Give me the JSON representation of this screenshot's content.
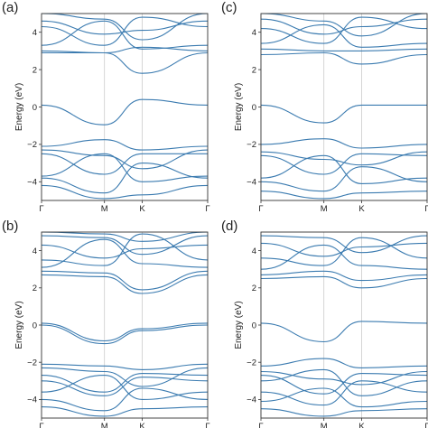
{
  "figure": {
    "line_color": "#3b7bb0",
    "frame_color": "#333333",
    "guide_color": "#cccccc"
  },
  "chart_data": [
    {
      "type": "line",
      "panel": "(a)",
      "ylabel": "Energy (eV)",
      "ylim": [
        -5,
        5
      ],
      "yticks": [
        "4",
        "2",
        "0",
        "−2",
        "−4"
      ],
      "xticks": [
        "Γ",
        "M",
        "K",
        "Γ"
      ],
      "series": [
        {
          "x": [
            0,
            0.5,
            0.8,
            1.32
          ],
          "y": [
            0.1,
            -0.95,
            0.4,
            0.1
          ]
        },
        {
          "x": [
            0,
            0.5,
            0.8,
            1.32
          ],
          "y": [
            -2.1,
            -1.75,
            -2.3,
            -2.1
          ]
        },
        {
          "x": [
            0,
            0.5,
            0.8,
            1.32
          ],
          "y": [
            -2.3,
            -2.6,
            -3.3,
            -2.3
          ]
        },
        {
          "x": [
            0,
            0.5,
            0.8,
            1.32
          ],
          "y": [
            -2.5,
            -3.6,
            -2.5,
            -2.5
          ]
        },
        {
          "x": [
            0,
            0.5,
            0.8,
            1.32
          ],
          "y": [
            -3.7,
            -2.5,
            -4.0,
            -3.7
          ]
        },
        {
          "x": [
            0,
            0.5,
            0.8,
            1.32
          ],
          "y": [
            -3.8,
            -4.6,
            -3.0,
            -3.8
          ]
        },
        {
          "x": [
            0,
            0.5,
            0.8,
            1.32
          ],
          "y": [
            -4.2,
            -4.9,
            -4.7,
            -4.2
          ]
        },
        {
          "x": [
            0,
            0.5,
            0.8,
            1.32
          ],
          "y": [
            2.9,
            2.9,
            1.8,
            2.9
          ]
        },
        {
          "x": [
            0,
            0.5,
            0.8,
            1.32
          ],
          "y": [
            3.0,
            2.9,
            3.2,
            3.0
          ]
        },
        {
          "x": [
            0,
            0.5,
            0.8,
            1.32
          ],
          "y": [
            3.3,
            4.6,
            3.1,
            3.3
          ]
        },
        {
          "x": [
            0,
            0.5,
            0.8,
            1.32
          ],
          "y": [
            4.3,
            3.3,
            4.8,
            4.3
          ]
        },
        {
          "x": [
            0,
            0.5,
            0.8,
            1.32
          ],
          "y": [
            4.6,
            3.9,
            4.1,
            4.6
          ]
        },
        {
          "x": [
            0,
            0.5,
            0.8,
            1.32
          ],
          "y": [
            5.0,
            4.7,
            3.6,
            5.0
          ]
        }
      ]
    },
    {
      "type": "line",
      "panel": "(c)",
      "ylabel": "Energy (eV)",
      "ylim": [
        -5,
        5
      ],
      "yticks": [
        "4",
        "2",
        "0",
        "−2",
        "−4"
      ],
      "xticks": [
        "Γ",
        "M",
        "K",
        "Γ"
      ],
      "series": [
        {
          "x": [
            0,
            0.5,
            0.8,
            1.32
          ],
          "y": [
            0.1,
            -0.85,
            0.1,
            0.1
          ]
        },
        {
          "x": [
            0,
            0.5,
            0.8,
            1.32
          ],
          "y": [
            -2.0,
            -1.7,
            -2.2,
            -2.0
          ]
        },
        {
          "x": [
            0,
            0.5,
            0.8,
            1.32
          ],
          "y": [
            -2.4,
            -2.8,
            -3.1,
            -2.4
          ]
        },
        {
          "x": [
            0,
            0.5,
            0.8,
            1.32
          ],
          "y": [
            -2.6,
            -3.6,
            -2.5,
            -2.6
          ]
        },
        {
          "x": [
            0,
            0.5,
            0.8,
            1.32
          ],
          "y": [
            -3.8,
            -2.6,
            -4.1,
            -3.8
          ]
        },
        {
          "x": [
            0,
            0.5,
            0.8,
            1.32
          ],
          "y": [
            -4.0,
            -4.5,
            -3.2,
            -4.0
          ]
        },
        {
          "x": [
            0,
            0.5,
            0.8,
            1.32
          ],
          "y": [
            -4.5,
            -4.9,
            -4.6,
            -4.5
          ]
        },
        {
          "x": [
            0,
            0.5,
            0.8,
            1.32
          ],
          "y": [
            2.8,
            2.9,
            2.3,
            2.8
          ]
        },
        {
          "x": [
            0,
            0.5,
            0.8,
            1.32
          ],
          "y": [
            3.1,
            3.0,
            3.0,
            3.1
          ]
        },
        {
          "x": [
            0,
            0.5,
            0.8,
            1.32
          ],
          "y": [
            3.4,
            4.4,
            3.2,
            3.4
          ]
        },
        {
          "x": [
            0,
            0.5,
            0.8,
            1.32
          ],
          "y": [
            4.2,
            3.4,
            4.8,
            4.2
          ]
        },
        {
          "x": [
            0,
            0.5,
            0.8,
            1.32
          ],
          "y": [
            4.7,
            3.9,
            4.3,
            4.7
          ]
        },
        {
          "x": [
            0,
            0.5,
            0.8,
            1.32
          ],
          "y": [
            5.0,
            4.6,
            3.8,
            5.0
          ]
        }
      ]
    },
    {
      "type": "line",
      "panel": "(b)",
      "ylabel": "Energy (eV)",
      "ylim": [
        -5,
        5
      ],
      "yticks": [
        "4",
        "2",
        "0",
        "−2",
        "−4"
      ],
      "xticks": [
        "Γ",
        "M",
        "K",
        "Γ"
      ],
      "series": [
        {
          "x": [
            0,
            0.5,
            0.8,
            1.32
          ],
          "y": [
            0.1,
            -0.85,
            -0.2,
            0.1
          ]
        },
        {
          "x": [
            0,
            0.5,
            0.8,
            1.32
          ],
          "y": [
            0.0,
            -1.0,
            -0.3,
            0.0
          ]
        },
        {
          "x": [
            0,
            0.5,
            0.8,
            1.32
          ],
          "y": [
            -2.1,
            -2.2,
            -2.4,
            -2.1
          ]
        },
        {
          "x": [
            0,
            0.5,
            0.8,
            1.32
          ],
          "y": [
            -2.3,
            -2.5,
            -3.3,
            -2.3
          ]
        },
        {
          "x": [
            0,
            0.5,
            0.8,
            1.32
          ],
          "y": [
            -2.7,
            -3.6,
            -2.6,
            -2.7
          ]
        },
        {
          "x": [
            0,
            0.5,
            0.8,
            1.32
          ],
          "y": [
            -3.0,
            -3.8,
            -2.8,
            -3.0
          ]
        },
        {
          "x": [
            0,
            0.5,
            0.8,
            1.32
          ],
          "y": [
            -3.6,
            -2.7,
            -4.0,
            -3.6
          ]
        },
        {
          "x": [
            0,
            0.5,
            0.8,
            1.32
          ],
          "y": [
            -4.0,
            -4.6,
            -3.4,
            -4.0
          ]
        },
        {
          "x": [
            0,
            0.5,
            0.8,
            1.32
          ],
          "y": [
            -4.4,
            -4.9,
            -4.5,
            -4.4
          ]
        },
        {
          "x": [
            0,
            0.5,
            0.8,
            1.32
          ],
          "y": [
            2.7,
            2.6,
            1.7,
            2.7
          ]
        },
        {
          "x": [
            0,
            0.5,
            0.8,
            1.32
          ],
          "y": [
            2.9,
            2.8,
            1.9,
            2.9
          ]
        },
        {
          "x": [
            0,
            0.5,
            0.8,
            1.32
          ],
          "y": [
            3.1,
            4.6,
            3.3,
            3.1
          ]
        },
        {
          "x": [
            0,
            0.5,
            0.8,
            1.32
          ],
          "y": [
            3.5,
            3.2,
            4.9,
            3.5
          ]
        },
        {
          "x": [
            0,
            0.5,
            0.8,
            1.32
          ],
          "y": [
            4.3,
            3.6,
            4.1,
            4.3
          ]
        },
        {
          "x": [
            0,
            0.5,
            0.8,
            1.32
          ],
          "y": [
            4.8,
            4.7,
            3.8,
            4.8
          ]
        },
        {
          "x": [
            0,
            0.5,
            0.8,
            1.32
          ],
          "y": [
            5.0,
            4.9,
            4.5,
            5.0
          ]
        }
      ]
    },
    {
      "type": "line",
      "panel": "(d)",
      "ylabel": "Energy (eV)",
      "ylim": [
        -5,
        5
      ],
      "yticks": [
        "4",
        "2",
        "0",
        "−2",
        "−4"
      ],
      "xticks": [
        "Γ",
        "M",
        "K",
        "Γ"
      ],
      "series": [
        {
          "x": [
            0,
            0.5,
            0.8,
            1.32
          ],
          "y": [
            0.1,
            -0.9,
            0.2,
            0.1
          ]
        },
        {
          "x": [
            0,
            0.5,
            0.8,
            1.32
          ],
          "y": [
            -2.2,
            -1.8,
            -2.3,
            -2.2
          ]
        },
        {
          "x": [
            0,
            0.5,
            0.8,
            1.32
          ],
          "y": [
            -2.5,
            -2.9,
            -3.2,
            -2.5
          ]
        },
        {
          "x": [
            0,
            0.5,
            0.8,
            1.32
          ],
          "y": [
            -2.7,
            -3.7,
            -2.6,
            -2.7
          ]
        },
        {
          "x": [
            0,
            0.5,
            0.8,
            1.32
          ],
          "y": [
            -3.0,
            -2.4,
            -3.8,
            -3.0
          ]
        },
        {
          "x": [
            0,
            0.5,
            0.8,
            1.32
          ],
          "y": [
            -3.6,
            -4.3,
            -3.0,
            -3.6
          ]
        },
        {
          "x": [
            0,
            0.5,
            0.8,
            1.32
          ],
          "y": [
            -4.1,
            -3.4,
            -4.4,
            -4.1
          ]
        },
        {
          "x": [
            0,
            0.5,
            0.8,
            1.32
          ],
          "y": [
            -4.5,
            -4.9,
            -4.6,
            -4.5
          ]
        },
        {
          "x": [
            0,
            0.5,
            0.8,
            1.32
          ],
          "y": [
            2.5,
            2.6,
            2.0,
            2.5
          ]
        },
        {
          "x": [
            0,
            0.5,
            0.8,
            1.32
          ],
          "y": [
            2.7,
            2.9,
            2.4,
            2.7
          ]
        },
        {
          "x": [
            0,
            0.5,
            0.8,
            1.32
          ],
          "y": [
            3.0,
            4.3,
            3.2,
            3.0
          ]
        },
        {
          "x": [
            0,
            0.5,
            0.8,
            1.32
          ],
          "y": [
            3.6,
            3.2,
            4.7,
            3.6
          ]
        },
        {
          "x": [
            0,
            0.5,
            0.8,
            1.32
          ],
          "y": [
            4.4,
            3.7,
            4.2,
            4.4
          ]
        },
        {
          "x": [
            0,
            0.5,
            0.8,
            1.32
          ],
          "y": [
            4.8,
            4.7,
            3.9,
            4.8
          ]
        }
      ]
    }
  ]
}
